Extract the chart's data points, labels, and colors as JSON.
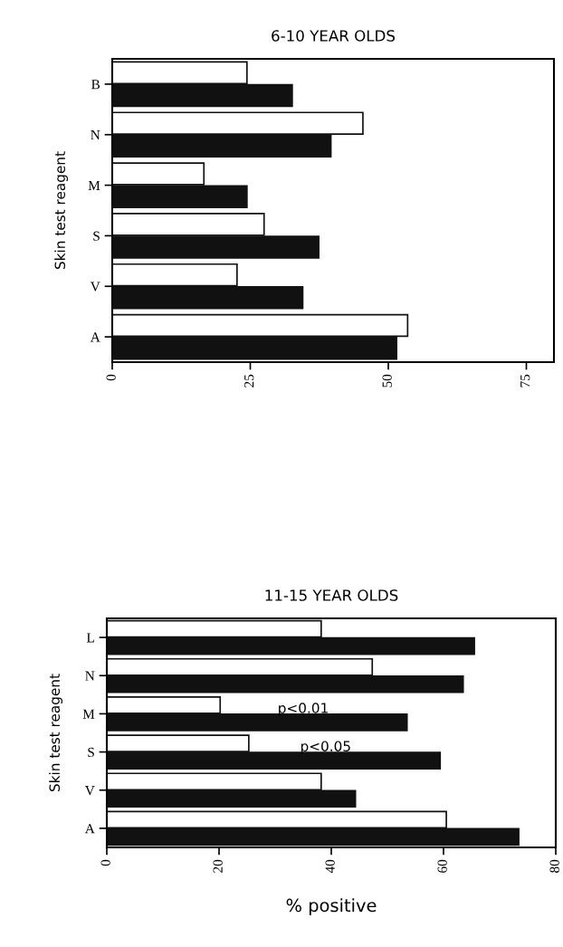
{
  "chart_data": [
    {
      "type": "bar",
      "orientation": "horizontal",
      "title": "6-10 YEAR OLDS",
      "ylabel": "Skin test reagent",
      "categories": [
        "B",
        "N",
        "M",
        "S",
        "V",
        "A"
      ],
      "series": [
        {
          "color": "#ffffff",
          "values": [
            24.4,
            45.4,
            16.6,
            27.5,
            22.6,
            53.5
          ]
        },
        {
          "color": "#111111",
          "values": [
            32.6,
            39.6,
            24.4,
            37.4,
            34.5,
            51.5
          ]
        }
      ],
      "xlim": [
        0,
        80
      ],
      "xticks": [
        0,
        25,
        50,
        75
      ],
      "grid": false,
      "legend": false
    },
    {
      "type": "bar",
      "orientation": "horizontal",
      "title": "11-15 YEAR OLDS",
      "ylabel": "Skin test reagent",
      "xlabel": "% positive",
      "categories": [
        "L",
        "N",
        "M",
        "S",
        "V",
        "A"
      ],
      "series": [
        {
          "color": "#ffffff",
          "values": [
            38.2,
            47.3,
            20.2,
            25.3,
            38.2,
            60.5
          ]
        },
        {
          "color": "#111111",
          "values": [
            65.5,
            63.5,
            53.5,
            59.4,
            44.3,
            73.4
          ]
        }
      ],
      "xlim": [
        0,
        80
      ],
      "xticks": [
        0,
        20,
        40,
        60,
        80
      ],
      "grid": false,
      "legend": false,
      "annotations": [
        {
          "text": "p<0.01",
          "x": 35,
          "y": "M"
        },
        {
          "text": "p<0.05",
          "x": 39,
          "y": "S"
        }
      ]
    }
  ]
}
